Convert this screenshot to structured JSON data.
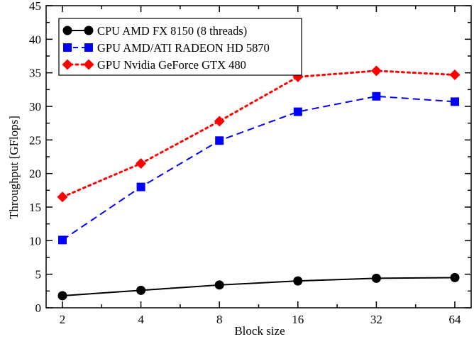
{
  "chart_data": {
    "type": "line",
    "xlabel": "Block size",
    "ylabel": "Throughput [GFlops]",
    "categories": [
      "2",
      "4",
      "8",
      "16",
      "32",
      "64"
    ],
    "x": [
      2,
      4,
      8,
      16,
      32,
      64
    ],
    "x_scale": "log2",
    "ylim": [
      0,
      45
    ],
    "yticks": [
      0,
      5,
      10,
      15,
      20,
      25,
      30,
      35,
      40,
      45
    ],
    "ytick_labels": [
      "0",
      "5",
      "10",
      "15",
      "20",
      "25",
      "30",
      "35",
      "40",
      "45"
    ],
    "grid": false,
    "legend_position": "top-left",
    "series": [
      {
        "name": "CPU AMD FX 8150 (8 threads)",
        "color": "#000000",
        "line_style": "solid",
        "marker": "circle",
        "values": [
          1.8,
          2.6,
          3.4,
          4.0,
          4.4,
          4.5
        ]
      },
      {
        "name": "GPU AMD/ATI RADEON HD 5870",
        "color": "#0000ff",
        "line_style": "dashed",
        "marker": "square",
        "values": [
          10.1,
          18.0,
          24.9,
          29.2,
          31.5,
          30.7
        ]
      },
      {
        "name": "GPU Nvidia GeForce GTX 480",
        "color": "#ff0000",
        "line_style": "dotted",
        "marker": "diamond",
        "values": [
          16.5,
          21.5,
          27.8,
          34.4,
          35.3,
          34.7
        ]
      }
    ]
  }
}
